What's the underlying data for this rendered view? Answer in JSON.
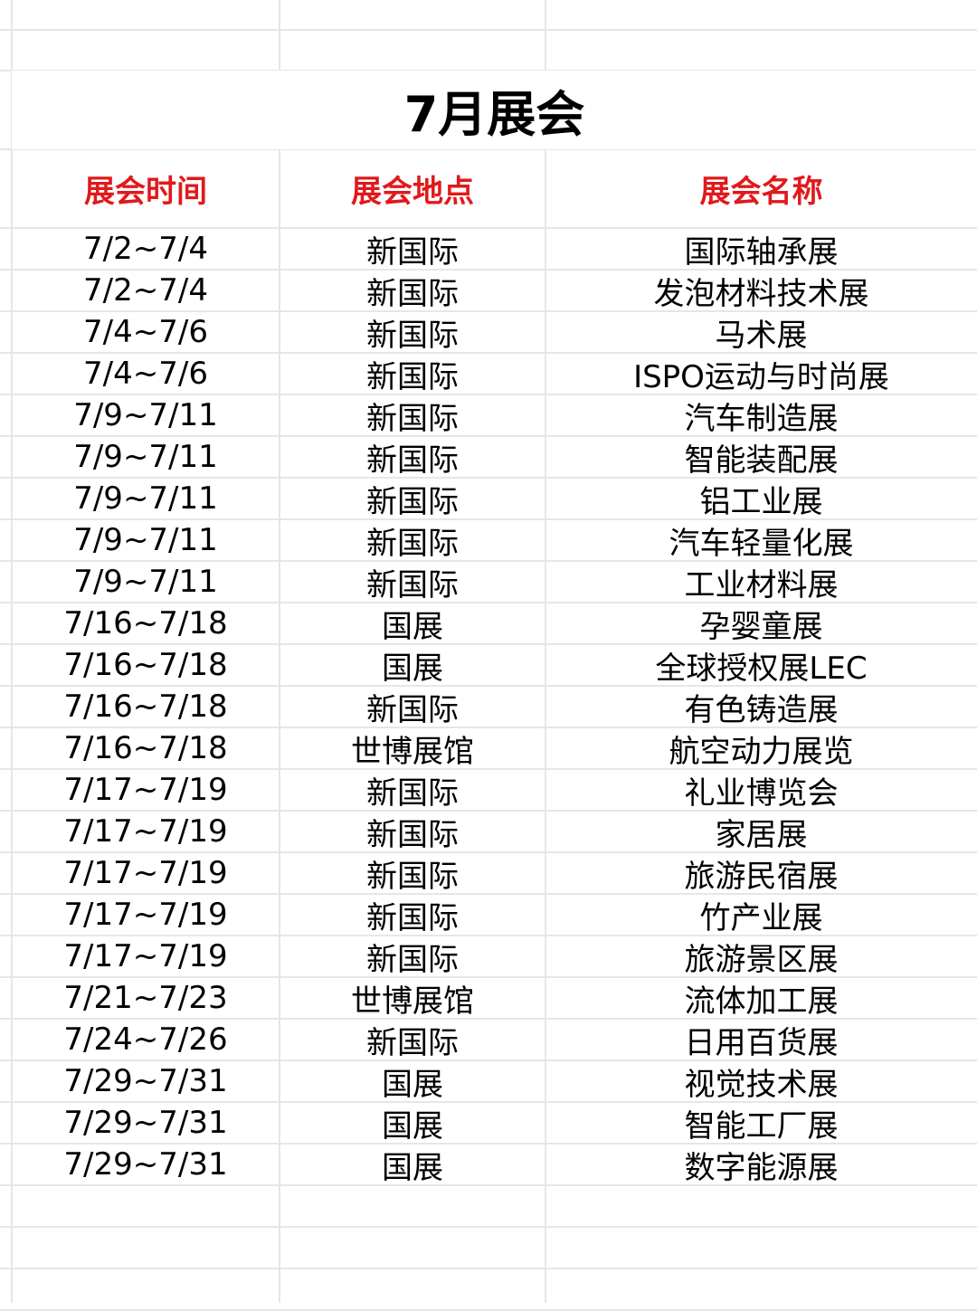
{
  "title": "7月展会",
  "headers": [
    "展会时间",
    "展会地点",
    "展会名称"
  ],
  "colors": {
    "header": "#e0191b",
    "grid": "#e6e6e6"
  },
  "rows": [
    [
      "7/2~7/4",
      "新国际",
      "国际轴承展"
    ],
    [
      "7/2~7/4",
      "新国际",
      "发泡材料技术展"
    ],
    [
      "7/4~7/6",
      "新国际",
      "马术展"
    ],
    [
      "7/4~7/6",
      "新国际",
      "ISPO运动与时尚展"
    ],
    [
      "7/9~7/11",
      "新国际",
      "汽车制造展"
    ],
    [
      "7/9~7/11",
      "新国际",
      "智能装配展"
    ],
    [
      "7/9~7/11",
      "新国际",
      "铝工业展"
    ],
    [
      "7/9~7/11",
      "新国际",
      "汽车轻量化展"
    ],
    [
      "7/9~7/11",
      "新国际",
      "工业材料展"
    ],
    [
      "7/16~7/18",
      "国展",
      "孕婴童展"
    ],
    [
      "7/16~7/18",
      "国展",
      "全球授权展LEC"
    ],
    [
      "7/16~7/18",
      "新国际",
      "有色铸造展"
    ],
    [
      "7/16~7/18",
      "世博展馆",
      "航空动力展览"
    ],
    [
      "7/17~7/19",
      "新国际",
      "礼业博览会"
    ],
    [
      "7/17~7/19",
      "新国际",
      "家居展"
    ],
    [
      "7/17~7/19",
      "新国际",
      "旅游民宿展"
    ],
    [
      "7/17~7/19",
      "新国际",
      "竹产业展"
    ],
    [
      "7/17~7/19",
      "新国际",
      "旅游景区展"
    ],
    [
      "7/21~7/23",
      "世博展馆",
      "流体加工展"
    ],
    [
      "7/24~7/26",
      "新国际",
      "日用百货展"
    ],
    [
      "7/29~7/31",
      "国展",
      "视觉技术展"
    ],
    [
      "7/29~7/31",
      "国展",
      "智能工厂展"
    ],
    [
      "7/29~7/31",
      "国展",
      "数字能源展"
    ]
  ]
}
